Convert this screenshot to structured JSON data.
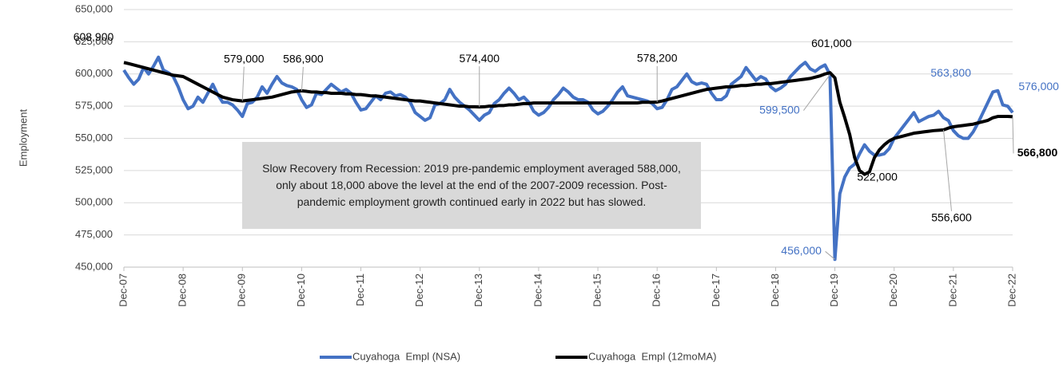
{
  "chart_data": {
    "type": "line",
    "y_label": "Employment",
    "note": "Slow Recovery from Recession: 2019 pre-pandemic employment averaged 588,000, only about 18,000 above the level at the end of the 2007-2009 recession. Post-pandemic employment growth continued early in 2022 but has slowed.",
    "ylim": [
      450000,
      650000
    ],
    "yticks": [
      {
        "value": 450000,
        "label": "450,000"
      },
      {
        "value": 475000,
        "label": "475,000"
      },
      {
        "value": 500000,
        "label": "500,000"
      },
      {
        "value": 525000,
        "label": "525,000"
      },
      {
        "value": 550000,
        "label": "550,000"
      },
      {
        "value": 575000,
        "label": "575,000"
      },
      {
        "value": 600000,
        "label": "600,000"
      },
      {
        "value": 625000,
        "label": "625,000"
      },
      {
        "value": 650000,
        "label": "650,000"
      }
    ],
    "grid": true,
    "legend": "bottom",
    "categories": [
      "Dec-07",
      null,
      null,
      null,
      null,
      null,
      null,
      null,
      null,
      null,
      null,
      null,
      "Dec-08",
      null,
      null,
      null,
      null,
      null,
      null,
      null,
      null,
      null,
      null,
      null,
      "Dec-09",
      null,
      null,
      null,
      null,
      null,
      null,
      null,
      null,
      null,
      null,
      null,
      "Dec-10",
      null,
      null,
      null,
      null,
      null,
      null,
      null,
      null,
      null,
      null,
      null,
      "Dec-11",
      null,
      null,
      null,
      null,
      null,
      null,
      null,
      null,
      null,
      null,
      null,
      "Dec-12",
      null,
      null,
      null,
      null,
      null,
      null,
      null,
      null,
      null,
      null,
      null,
      "Dec-13",
      null,
      null,
      null,
      null,
      null,
      null,
      null,
      null,
      null,
      null,
      null,
      "Dec-14",
      null,
      null,
      null,
      null,
      null,
      null,
      null,
      null,
      null,
      null,
      null,
      "Dec-15",
      null,
      null,
      null,
      null,
      null,
      null,
      null,
      null,
      null,
      null,
      null,
      "Dec-16",
      null,
      null,
      null,
      null,
      null,
      null,
      null,
      null,
      null,
      null,
      null,
      "Dec-17",
      null,
      null,
      null,
      null,
      null,
      null,
      null,
      null,
      null,
      null,
      null,
      "Dec-18",
      null,
      null,
      null,
      null,
      null,
      null,
      null,
      null,
      null,
      null,
      null,
      "Dec-19",
      null,
      null,
      null,
      null,
      null,
      null,
      null,
      null,
      null,
      null,
      null,
      "Dec-20",
      null,
      null,
      null,
      null,
      null,
      null,
      null,
      null,
      null,
      null,
      null,
      "Dec-21",
      null,
      null,
      null,
      null,
      null,
      null,
      null,
      null,
      null,
      null,
      null,
      "Dec-22"
    ],
    "series": [
      {
        "name": "Cuyahoga  Empl (NSA)",
        "color": "#4472c4",
        "values": [
          603000,
          597000,
          592000,
          596000,
          605000,
          600000,
          606000,
          613000,
          603000,
          601000,
          598000,
          590000,
          580000,
          573000,
          575000,
          582000,
          578000,
          585000,
          592000,
          584000,
          578000,
          578000,
          576000,
          572000,
          567000,
          577000,
          578000,
          582000,
          590000,
          585000,
          592000,
          598000,
          593000,
          591000,
          590000,
          588000,
          580000,
          574000,
          576000,
          585000,
          584000,
          588000,
          592000,
          589000,
          586000,
          588000,
          585000,
          578000,
          572000,
          573000,
          578000,
          583000,
          580000,
          585000,
          586000,
          583000,
          584000,
          582000,
          578000,
          570000,
          567000,
          564000,
          566000,
          576000,
          577000,
          580000,
          588000,
          582000,
          578000,
          575000,
          572000,
          568000,
          564000,
          568000,
          570000,
          577000,
          580000,
          585000,
          589000,
          585000,
          580000,
          582000,
          578000,
          571000,
          568000,
          570000,
          574000,
          580000,
          584000,
          589000,
          586000,
          582000,
          580000,
          580000,
          578000,
          572000,
          569000,
          571000,
          575000,
          580000,
          586000,
          590000,
          583000,
          582000,
          581000,
          580000,
          579000,
          577000,
          573000,
          574000,
          580000,
          588000,
          590000,
          595000,
          600000,
          594000,
          592000,
          593000,
          592000,
          585000,
          580000,
          580000,
          583000,
          592000,
          595000,
          598000,
          605000,
          600000,
          595000,
          598000,
          596000,
          590000,
          587000,
          589000,
          592000,
          598000,
          602000,
          606000,
          609000,
          604000,
          602000,
          605000,
          607000,
          599500,
          456000,
          507000,
          520000,
          527000,
          530000,
          538000,
          545000,
          540000,
          537000,
          537000,
          538000,
          542000,
          550000,
          555000,
          560000,
          565000,
          570000,
          563000,
          565000,
          567000,
          568000,
          571000,
          566000,
          563800,
          556000,
          552000,
          550000,
          550000,
          555000,
          562000,
          570000,
          578000,
          586000,
          587000,
          576000,
          575000,
          570000
        ],
        "value_labels": [
          null,
          null,
          null,
          null,
          null,
          null,
          null,
          null,
          null,
          null,
          null,
          null,
          null,
          null,
          null,
          null,
          null,
          null,
          null,
          null,
          null,
          null,
          null,
          null,
          null,
          null,
          null,
          null,
          null,
          null,
          null,
          null,
          null,
          null,
          null,
          null,
          null,
          null,
          null,
          null,
          null,
          null,
          null,
          null,
          null,
          null,
          null,
          null,
          null,
          null,
          null,
          null,
          null,
          null,
          null,
          null,
          null,
          null,
          null,
          null,
          null,
          null,
          null,
          null,
          null,
          null,
          null,
          null,
          null,
          null,
          null,
          null,
          null,
          null,
          null,
          null,
          null,
          null,
          null,
          null,
          null,
          null,
          null,
          null,
          null,
          null,
          null,
          null,
          null,
          null,
          null,
          null,
          null,
          null,
          null,
          null,
          null,
          null,
          null,
          null,
          null,
          null,
          null,
          null,
          null,
          null,
          null,
          null,
          null,
          null,
          null,
          null,
          null,
          null,
          null,
          null,
          null,
          null,
          null,
          null,
          null,
          null,
          null,
          null,
          null,
          null,
          null,
          null,
          null,
          null,
          null,
          null,
          null,
          null,
          null,
          null,
          null,
          null,
          null,
          null,
          null,
          null,
          null,
          "599,500",
          "456,000",
          null,
          null,
          null,
          null,
          null,
          null,
          null,
          null,
          null,
          null,
          null,
          null,
          null,
          null,
          null,
          null,
          null,
          null,
          null,
          null,
          null,
          null,
          "563,800",
          null,
          null,
          null,
          null,
          null,
          null,
          null,
          null,
          null,
          null,
          "576,000",
          null,
          null
        ]
      },
      {
        "name": "Cuyahoga  Empl (12moMA)",
        "color": "#000000",
        "values": [
          608900,
          608000,
          607000,
          606000,
          605000,
          604000,
          603000,
          602000,
          601000,
          600000,
          599000,
          598500,
          598000,
          596000,
          594000,
          592000,
          590000,
          588000,
          586000,
          584000,
          582000,
          581000,
          580000,
          579500,
          579000,
          579500,
          580000,
          580500,
          581000,
          581500,
          582000,
          583000,
          584000,
          585000,
          586000,
          586500,
          586900,
          586500,
          586000,
          586000,
          585500,
          585500,
          585000,
          585000,
          585000,
          584500,
          584500,
          584000,
          584000,
          583500,
          583000,
          583000,
          582500,
          582000,
          581500,
          581000,
          580500,
          580000,
          579500,
          579000,
          579000,
          578500,
          578000,
          577500,
          577000,
          576500,
          576000,
          575500,
          575000,
          575000,
          574500,
          574500,
          574400,
          574500,
          575000,
          575000,
          575500,
          575500,
          576000,
          576000,
          576500,
          577000,
          577000,
          577500,
          577500,
          577500,
          577500,
          577500,
          577500,
          577500,
          577500,
          577500,
          577500,
          577500,
          577500,
          577500,
          577500,
          577500,
          577500,
          577500,
          577500,
          577500,
          577500,
          577500,
          577500,
          578000,
          578000,
          578000,
          578200,
          579000,
          580000,
          581000,
          582000,
          583000,
          584000,
          585000,
          586000,
          587000,
          588000,
          588500,
          589000,
          589500,
          590000,
          590000,
          590500,
          591000,
          591000,
          591500,
          592000,
          592000,
          592500,
          592500,
          593000,
          593500,
          594000,
          594500,
          595000,
          595500,
          596000,
          596500,
          597500,
          598500,
          600000,
          601000,
          597000,
          578000,
          566000,
          553000,
          535000,
          525000,
          522000,
          524000,
          535000,
          541000,
          545000,
          548000,
          550000,
          551000,
          552000,
          553000,
          554000,
          554500,
          555000,
          555500,
          556000,
          556300,
          556600,
          558000,
          559000,
          559500,
          560000,
          560500,
          561000,
          562000,
          563000,
          564000,
          566000,
          567000,
          567000,
          567000,
          566800
        ],
        "value_labels": [
          "608,900",
          null,
          null,
          null,
          null,
          null,
          null,
          null,
          null,
          null,
          null,
          null,
          null,
          null,
          null,
          null,
          null,
          null,
          null,
          null,
          null,
          null,
          null,
          null,
          "579,000",
          null,
          null,
          null,
          null,
          null,
          null,
          null,
          null,
          null,
          null,
          null,
          "586,900",
          null,
          null,
          null,
          null,
          null,
          null,
          null,
          null,
          null,
          null,
          null,
          null,
          null,
          null,
          null,
          null,
          null,
          null,
          null,
          null,
          null,
          null,
          null,
          null,
          null,
          null,
          null,
          null,
          null,
          null,
          null,
          null,
          null,
          null,
          null,
          "574,400",
          null,
          null,
          null,
          null,
          null,
          null,
          null,
          null,
          null,
          null,
          null,
          null,
          null,
          null,
          null,
          null,
          null,
          null,
          null,
          null,
          null,
          null,
          null,
          null,
          null,
          null,
          null,
          null,
          null,
          null,
          null,
          null,
          null,
          null,
          null,
          "578,200",
          null,
          null,
          null,
          null,
          null,
          null,
          null,
          null,
          null,
          null,
          null,
          null,
          null,
          null,
          null,
          null,
          null,
          null,
          null,
          null,
          null,
          null,
          null,
          null,
          null,
          null,
          null,
          null,
          null,
          null,
          null,
          null,
          null,
          null,
          "601,000",
          null,
          null,
          null,
          null,
          null,
          null,
          "522,000",
          null,
          null,
          null,
          null,
          null,
          null,
          null,
          null,
          null,
          null,
          null,
          null,
          null,
          null,
          null,
          "556,600",
          null,
          null,
          null,
          null,
          null,
          null,
          null,
          null,
          null,
          null,
          null,
          null,
          null,
          "566,800"
        ]
      }
    ]
  }
}
